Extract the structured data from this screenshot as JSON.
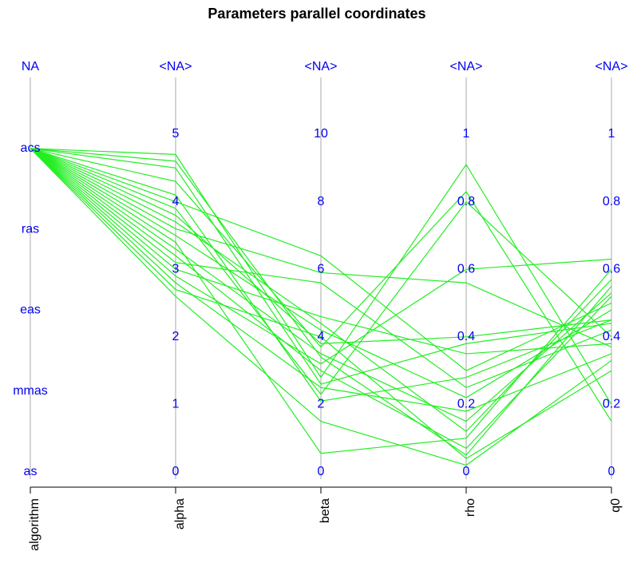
{
  "chart_data": {
    "type": "parallel",
    "title": "Parameters parallel coordinates",
    "line_color": "#22ee22",
    "label_color": "#0000ee",
    "axes": [
      {
        "name": "algorithm",
        "categories": [
          "as",
          "mmas",
          "eas",
          "ras",
          "acs"
        ],
        "na_label": "NA"
      },
      {
        "name": "alpha",
        "lim": [
          0,
          5
        ],
        "ticks": [
          0,
          1,
          2,
          3,
          4,
          5
        ],
        "na_label": "<NA>"
      },
      {
        "name": "beta",
        "lim": [
          0,
          10
        ],
        "ticks": [
          0,
          2,
          4,
          6,
          8,
          10
        ],
        "na_label": "<NA>"
      },
      {
        "name": "rho",
        "lim": [
          0,
          1
        ],
        "ticks": [
          0,
          0.2,
          0.4,
          0.6,
          0.8,
          1
        ],
        "na_label": "<NA>"
      },
      {
        "name": "q0",
        "lim": [
          0,
          1
        ],
        "ticks": [
          0,
          0.2,
          0.4,
          0.6,
          0.8,
          1
        ],
        "na_label": "<NA>"
      }
    ],
    "rows": [
      [
        "acs",
        4.7,
        2.8,
        0.91,
        0.2
      ],
      [
        "acs",
        4.6,
        3.4,
        0.05,
        0.55
      ],
      [
        "acs",
        4.3,
        3.7,
        0.83,
        0.15
      ],
      [
        "acs",
        4.0,
        6.4,
        0.3,
        0.5
      ],
      [
        "acs",
        3.9,
        2.3,
        0.8,
        0.4
      ],
      [
        "acs",
        3.8,
        3.8,
        0.4,
        0.45
      ],
      [
        "acs",
        3.6,
        5.9,
        0.56,
        0.37
      ],
      [
        "acs",
        3.5,
        4.2,
        0.22,
        0.48
      ],
      [
        "acs",
        3.4,
        0.55,
        0.1,
        0.6
      ],
      [
        "acs",
        3.2,
        3.0,
        0.07,
        0.52
      ],
      [
        "acs",
        3.1,
        5.6,
        0.25,
        0.42
      ],
      [
        "acs",
        3.0,
        4.6,
        0.35,
        0.38
      ],
      [
        "acs",
        2.9,
        3.2,
        0.6,
        0.63
      ],
      [
        "acs",
        2.8,
        2.5,
        0.18,
        0.35
      ],
      [
        "acs",
        2.7,
        4.0,
        0.04,
        0.3
      ],
      [
        "acs",
        4.1,
        2.1,
        0.28,
        0.45
      ],
      [
        "acs",
        3.3,
        3.5,
        0.15,
        0.53
      ],
      [
        "acs",
        2.6,
        1.5,
        0.02,
        0.33
      ],
      [
        "acs",
        3.7,
        4.4,
        0.12,
        0.57
      ],
      [
        "acs",
        4.5,
        2.6,
        0.38,
        0.44
      ]
    ]
  }
}
